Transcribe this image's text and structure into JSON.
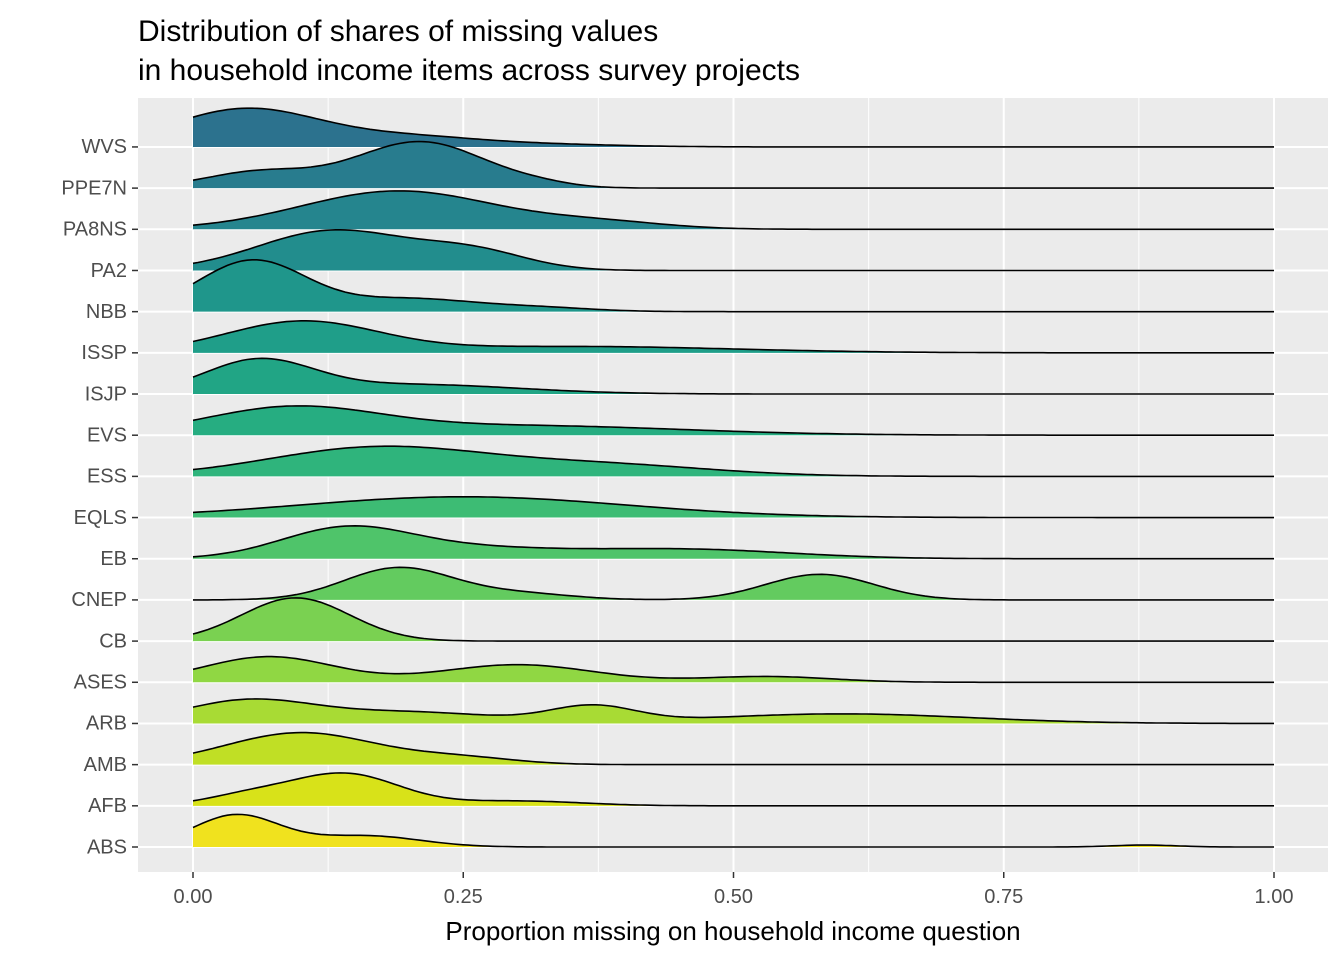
{
  "chart_data": {
    "type": "ridgeline",
    "title": "Distribution of shares of missing values\nin household income items across survey projects",
    "xlabel": "Proportion missing on household income question",
    "ylabel": "",
    "xlim": [
      0,
      1
    ],
    "x_ticks": [
      "0.00",
      "0.25",
      "0.50",
      "0.75",
      "1.00"
    ],
    "grid": true,
    "legend": "none",
    "colormap": "viridis",
    "series": [
      {
        "name": "ABS",
        "color": "#f0e21e",
        "peaks": [
          [
            0.04,
            0.04,
            1.0
          ],
          [
            0.16,
            0.05,
            0.35
          ],
          [
            0.88,
            0.03,
            0.06
          ]
        ]
      },
      {
        "name": "AFB",
        "color": "#d8e219",
        "peaks": [
          [
            0.14,
            0.05,
            1.0
          ],
          [
            0.05,
            0.04,
            0.3
          ],
          [
            0.3,
            0.06,
            0.15
          ]
        ]
      },
      {
        "name": "AMB",
        "color": "#c0df25",
        "peaks": [
          [
            0.1,
            0.07,
            1.0
          ],
          [
            0.25,
            0.05,
            0.2
          ]
        ]
      },
      {
        "name": "ARB",
        "color": "#a8db34",
        "peaks": [
          [
            0.05,
            0.06,
            0.7
          ],
          [
            0.37,
            0.04,
            0.5
          ],
          [
            0.6,
            0.12,
            0.3
          ],
          [
            0.2,
            0.08,
            0.35
          ]
        ]
      },
      {
        "name": "ASES",
        "color": "#90d743",
        "peaks": [
          [
            0.07,
            0.06,
            0.8
          ],
          [
            0.3,
            0.07,
            0.55
          ],
          [
            0.53,
            0.06,
            0.18
          ]
        ]
      },
      {
        "name": "CB",
        "color": "#7ad151",
        "peaks": [
          [
            0.095,
            0.05,
            1.35
          ]
        ]
      },
      {
        "name": "CNEP",
        "color": "#63cb5f",
        "peaks": [
          [
            0.19,
            0.05,
            1.0
          ],
          [
            0.58,
            0.05,
            0.8
          ],
          [
            0.3,
            0.05,
            0.2
          ]
        ]
      },
      {
        "name": "EB",
        "color": "#4fc46a",
        "peaks": [
          [
            0.14,
            0.06,
            0.9
          ],
          [
            0.45,
            0.1,
            0.3
          ],
          [
            0.25,
            0.08,
            0.3
          ]
        ]
      },
      {
        "name": "EQLS",
        "color": "#3dbc74",
        "peaks": [
          [
            0.25,
            0.15,
            0.65
          ]
        ]
      },
      {
        "name": "ESS",
        "color": "#2fb47c",
        "peaks": [
          [
            0.17,
            0.1,
            0.9
          ],
          [
            0.38,
            0.1,
            0.35
          ]
        ]
      },
      {
        "name": "EVS",
        "color": "#26ad81",
        "peaks": [
          [
            0.09,
            0.08,
            0.8
          ],
          [
            0.3,
            0.15,
            0.3
          ]
        ]
      },
      {
        "name": "ISJP",
        "color": "#21a585",
        "peaks": [
          [
            0.06,
            0.05,
            1.0
          ],
          [
            0.2,
            0.1,
            0.3
          ]
        ]
      },
      {
        "name": "ISSP",
        "color": "#1f9e89",
        "peaks": [
          [
            0.1,
            0.07,
            0.95
          ],
          [
            0.35,
            0.15,
            0.2
          ]
        ]
      },
      {
        "name": "NBB",
        "color": "#1f968b",
        "peaks": [
          [
            0.055,
            0.05,
            1.6
          ],
          [
            0.2,
            0.06,
            0.4
          ],
          [
            0.32,
            0.05,
            0.12
          ]
        ]
      },
      {
        "name": "PA2",
        "color": "#228d8d",
        "peaks": [
          [
            0.13,
            0.07,
            1.25
          ],
          [
            0.26,
            0.05,
            0.55
          ]
        ]
      },
      {
        "name": "PA8NS",
        "color": "#25858e",
        "peaks": [
          [
            0.19,
            0.09,
            1.2
          ],
          [
            0.38,
            0.06,
            0.2
          ]
        ]
      },
      {
        "name": "PPE7N",
        "color": "#287c8e",
        "peaks": [
          [
            0.21,
            0.06,
            1.45
          ],
          [
            0.06,
            0.05,
            0.5
          ],
          [
            0.32,
            0.03,
            0.08
          ]
        ]
      },
      {
        "name": "WVS",
        "color": "#2c728e",
        "peaks": [
          [
            0.05,
            0.07,
            1.2
          ],
          [
            0.2,
            0.06,
            0.25
          ],
          [
            0.3,
            0.08,
            0.1
          ]
        ]
      }
    ]
  }
}
